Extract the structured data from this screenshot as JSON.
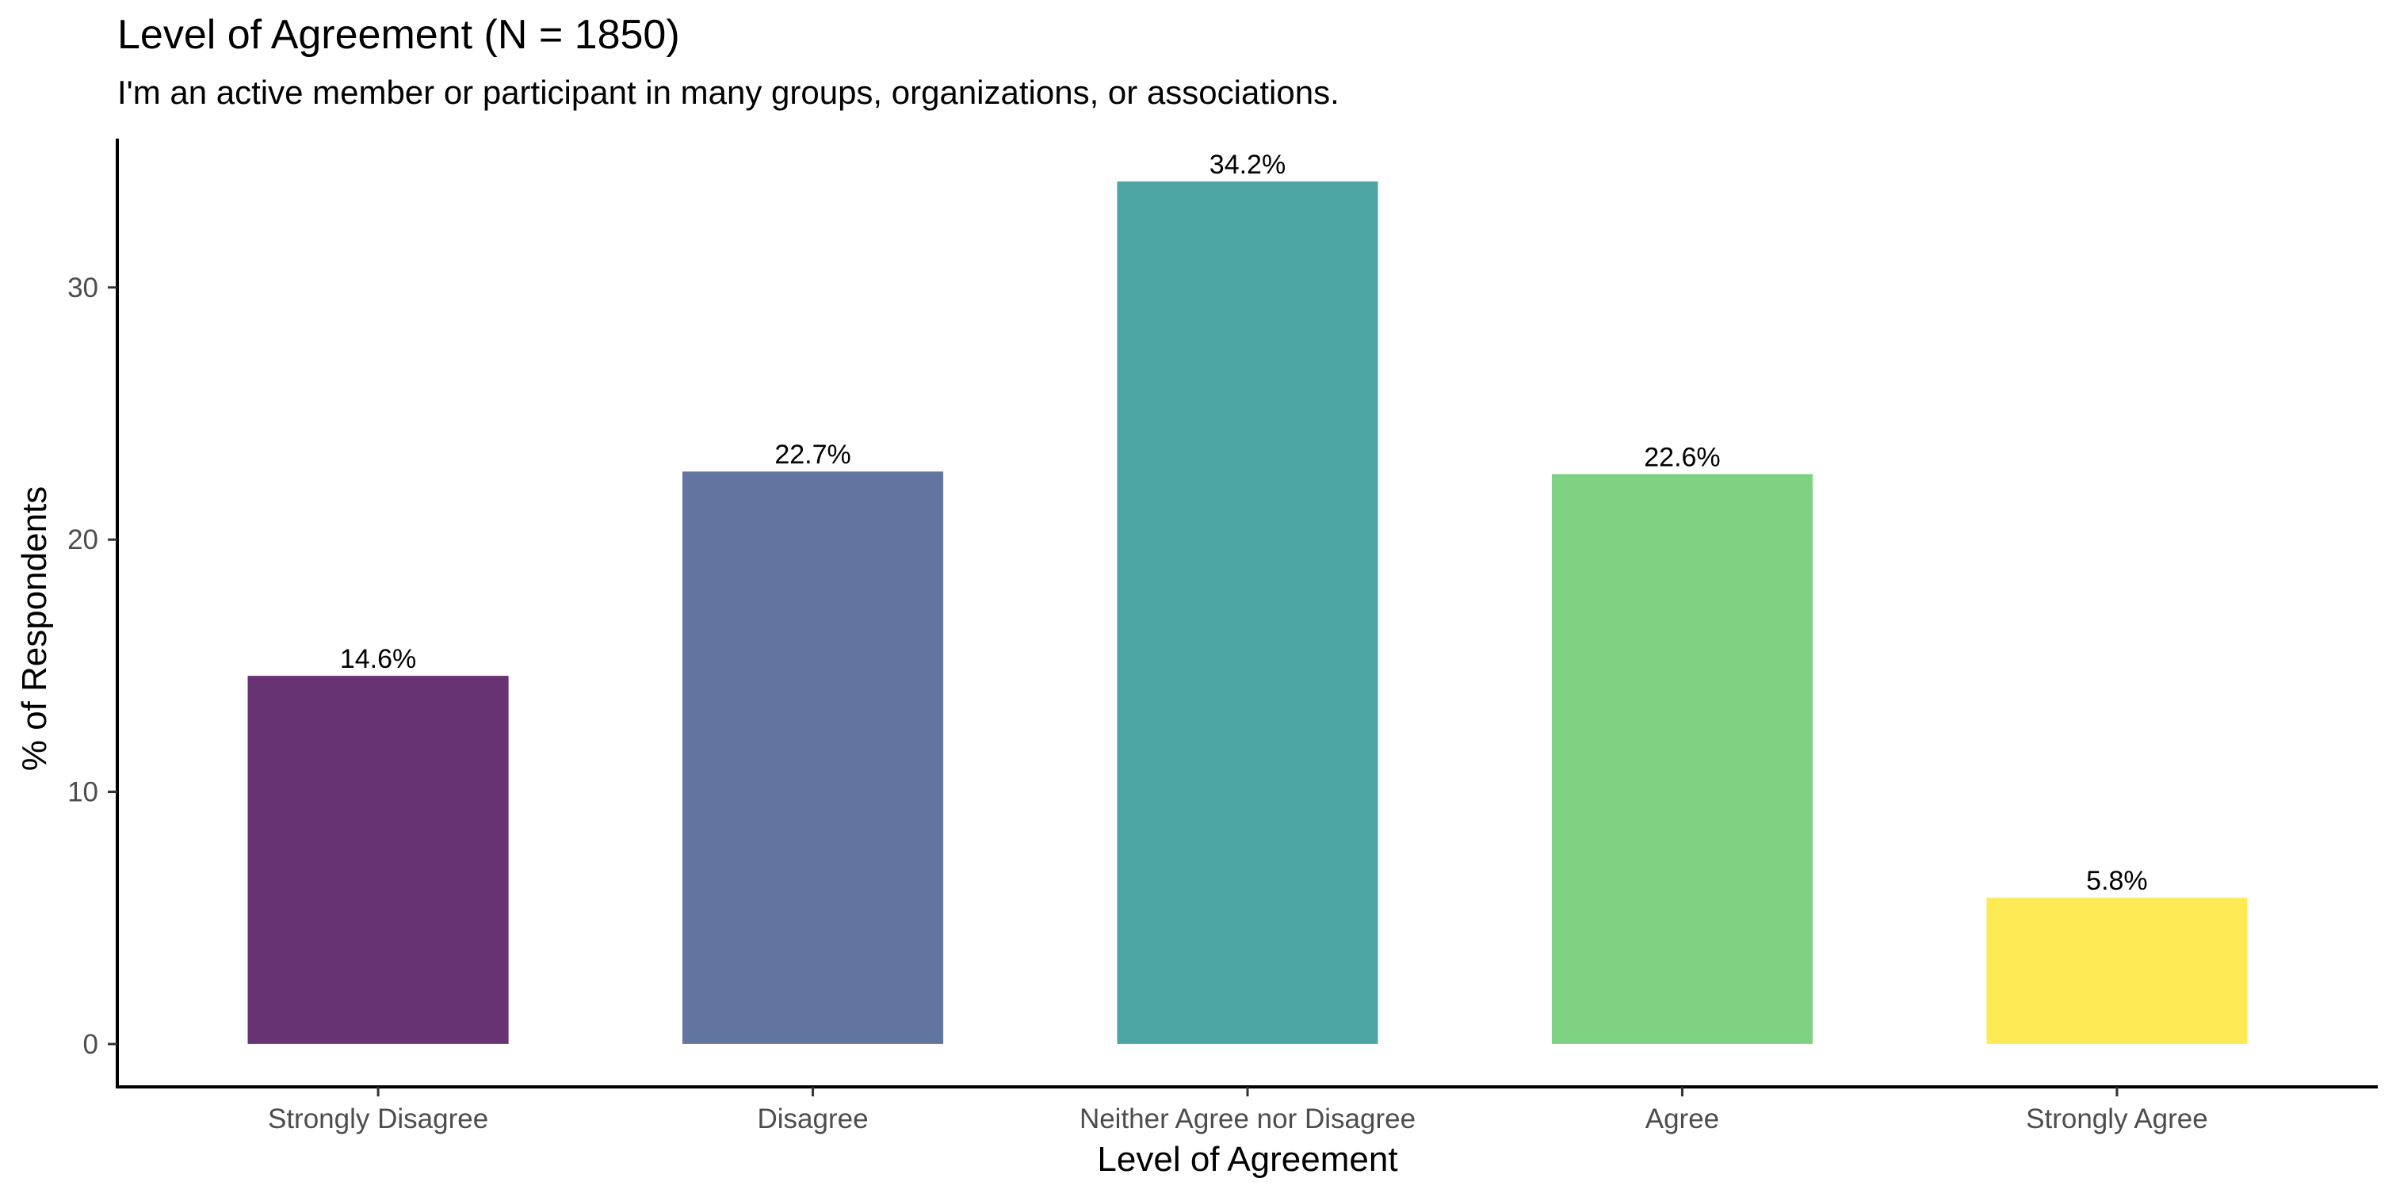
{
  "chart_data": {
    "type": "bar",
    "title": "Level of Agreement (N = 1850)",
    "subtitle": "I'm an active member or participant in many groups, organizations, or associations.",
    "xlabel": "Level of Agreement",
    "ylabel": "% of Respondents",
    "categories": [
      "Strongly Disagree",
      "Disagree",
      "Neither Agree nor Disagree",
      "Agree",
      "Strongly Agree"
    ],
    "values": [
      14.6,
      22.7,
      34.2,
      22.6,
      5.8
    ],
    "data_labels": [
      "14.6%",
      "22.7%",
      "34.2%",
      "22.6%",
      "5.8%"
    ],
    "colors": [
      "#683373",
      "#6275a0",
      "#4ea6a4",
      "#7fd282",
      "#fdea55"
    ],
    "ylim": [
      -1.7,
      35.9
    ],
    "yticks": [
      0,
      10,
      20,
      30
    ],
    "ytick_labels": [
      "0",
      "10",
      "20",
      "30"
    ],
    "grid": false,
    "legend": "none"
  }
}
